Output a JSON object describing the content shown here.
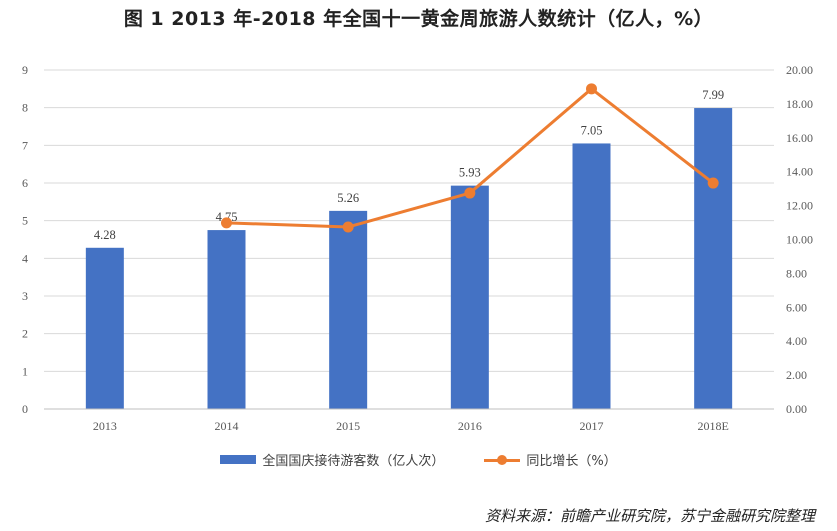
{
  "chart_data": {
    "type": "bar+line",
    "title": "图 1   2013 年-2018 年全国十一黄金周旅游人数统计（亿人，%）",
    "categories": [
      "2013",
      "2014",
      "2015",
      "2016",
      "2017",
      "2018E"
    ],
    "series": [
      {
        "name": "全国国庆接待游客数（亿人次）",
        "type": "bar",
        "axis": "left",
        "values": [
          4.28,
          4.75,
          5.26,
          5.93,
          7.05,
          7.99
        ],
        "value_labels": [
          "4.28",
          "4.75",
          "5.26",
          "5.93",
          "7.05",
          "7.99"
        ]
      },
      {
        "name": "同比增长（%）",
        "type": "line",
        "axis": "right",
        "values": [
          null,
          10.98,
          10.74,
          12.74,
          18.89,
          13.33
        ]
      }
    ],
    "y_left": {
      "range": [
        0,
        9
      ],
      "ticks": [
        "0",
        "1",
        "2",
        "3",
        "4",
        "5",
        "6",
        "7",
        "8",
        "9"
      ]
    },
    "y_right": {
      "range": [
        0,
        20
      ],
      "ticks": [
        "0.00",
        "2.00",
        "4.00",
        "6.00",
        "8.00",
        "10.00",
        "12.00",
        "14.00",
        "16.00",
        "18.00",
        "20.00"
      ]
    },
    "grid": true,
    "legend_position": "bottom",
    "colors": {
      "bar": "#4472C4",
      "line": "#ED7D31",
      "grid": "#D9D9D9"
    }
  },
  "source": "资料来源：前瞻产业研究院，苏宁金融研究院整理"
}
